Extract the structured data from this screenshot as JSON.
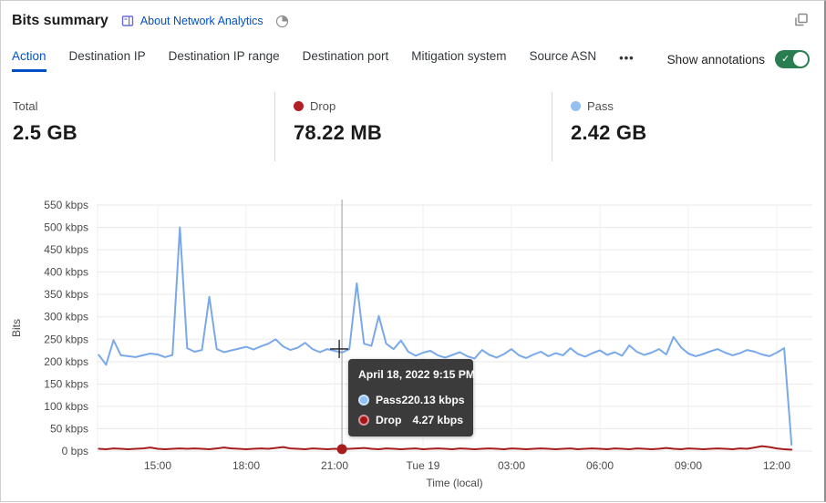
{
  "header": {
    "title": "Bits summary",
    "about_link": "About Network Analytics"
  },
  "icons": {
    "about": "book-icon",
    "time_window": "clock-pie-icon",
    "expand": "overlapping-squares-icon",
    "more_tabs": "ellipsis",
    "toggle_check_glyph": "✓"
  },
  "tabs": {
    "items": [
      {
        "label": "Action",
        "active": true
      },
      {
        "label": "Destination IP",
        "active": false
      },
      {
        "label": "Destination IP range",
        "active": false
      },
      {
        "label": "Destination port",
        "active": false
      },
      {
        "label": "Mitigation system",
        "active": false
      },
      {
        "label": "Source ASN",
        "active": false
      }
    ],
    "more_label": "•••"
  },
  "annotations_toggle": {
    "label": "Show annotations",
    "enabled": true
  },
  "stats": [
    {
      "label": "Total",
      "value": "2.5 GB",
      "dot_color": null
    },
    {
      "label": "Drop",
      "value": "78.22 MB",
      "dot_color": "#b21f24"
    },
    {
      "label": "Pass",
      "value": "2.42 GB",
      "dot_color": "#93c0ef"
    }
  ],
  "tooltip": {
    "title": "April 18, 2022 9:15 PM",
    "rows": [
      {
        "label": "Pass",
        "value": "220.13 kbps",
        "color": "#8ec1f5"
      },
      {
        "label": "Drop",
        "value": "4.27 kbps",
        "color": "#a51417"
      }
    ]
  },
  "chart_data": {
    "type": "line",
    "title": "Bits summary over time",
    "xlabel": "Time (local)",
    "ylabel": "Bits",
    "ylim_bps": [
      0,
      550000
    ],
    "y_tick_labels": [
      "0 bps",
      "50 kbps",
      "100 kbps",
      "150 kbps",
      "200 kbps",
      "250 kbps",
      "300 kbps",
      "350 kbps",
      "400 kbps",
      "450 kbps",
      "500 kbps",
      "550 kbps"
    ],
    "y_tick_step_kbps": 50,
    "x_tick_labels": [
      "15:00",
      "18:00",
      "21:00",
      "Tue 19",
      "03:00",
      "06:00",
      "09:00",
      "12:00"
    ],
    "start_time": "April 18, 2022 13:00",
    "interval_minutes": 15,
    "grid": true,
    "legend_position": "stats-row-above",
    "series": [
      {
        "name": "Pass",
        "color": "#79a9ea",
        "values_kbps": [
          215,
          193,
          248,
          214,
          212,
          210,
          214,
          218,
          216,
          210,
          215,
          500,
          230,
          222,
          226,
          345,
          228,
          221,
          225,
          229,
          233,
          227,
          234,
          240,
          250,
          234,
          226,
          231,
          242,
          228,
          221,
          228,
          224,
          220.13,
          228,
          375,
          240,
          235,
          302,
          240,
          228,
          247,
          222,
          213,
          220,
          224,
          214,
          209,
          215,
          221,
          212,
          207,
          226,
          215,
          209,
          217,
          228,
          214,
          208,
          216,
          222,
          212,
          219,
          214,
          230,
          217,
          211,
          219,
          225,
          215,
          221,
          213,
          236,
          222,
          215,
          220,
          228,
          216,
          255,
          232,
          218,
          212,
          217,
          223,
          228,
          220,
          214,
          219,
          226,
          222,
          216,
          212,
          220,
          230,
          14
        ]
      },
      {
        "name": "Drop",
        "color": "#a61d1d",
        "values_kbps": [
          5,
          4,
          6,
          5,
          4,
          5,
          6,
          8,
          5,
          4,
          5,
          6,
          5,
          6,
          5,
          4,
          6,
          8,
          6,
          5,
          4,
          5,
          6,
          5,
          7,
          9,
          6,
          5,
          4,
          6,
          5,
          4,
          5,
          4.27,
          5,
          6,
          7,
          5,
          4,
          6,
          5,
          4,
          5,
          6,
          4,
          5,
          6,
          5,
          4,
          6,
          5,
          4,
          5,
          6,
          5,
          4,
          6,
          5,
          4,
          5,
          6,
          5,
          4,
          5,
          6,
          4,
          5,
          6,
          5,
          4,
          6,
          5,
          4,
          6,
          5,
          4,
          5,
          7,
          5,
          4,
          6,
          5,
          4,
          5,
          6,
          5,
          4,
          6,
          5,
          8,
          11,
          9,
          6,
          4,
          3
        ]
      }
    ],
    "highlight": {
      "time_label": "April 18, 2022 9:15 PM",
      "point_index": 33,
      "pass_kbps": 220.13,
      "drop_kbps": 4.27
    }
  }
}
